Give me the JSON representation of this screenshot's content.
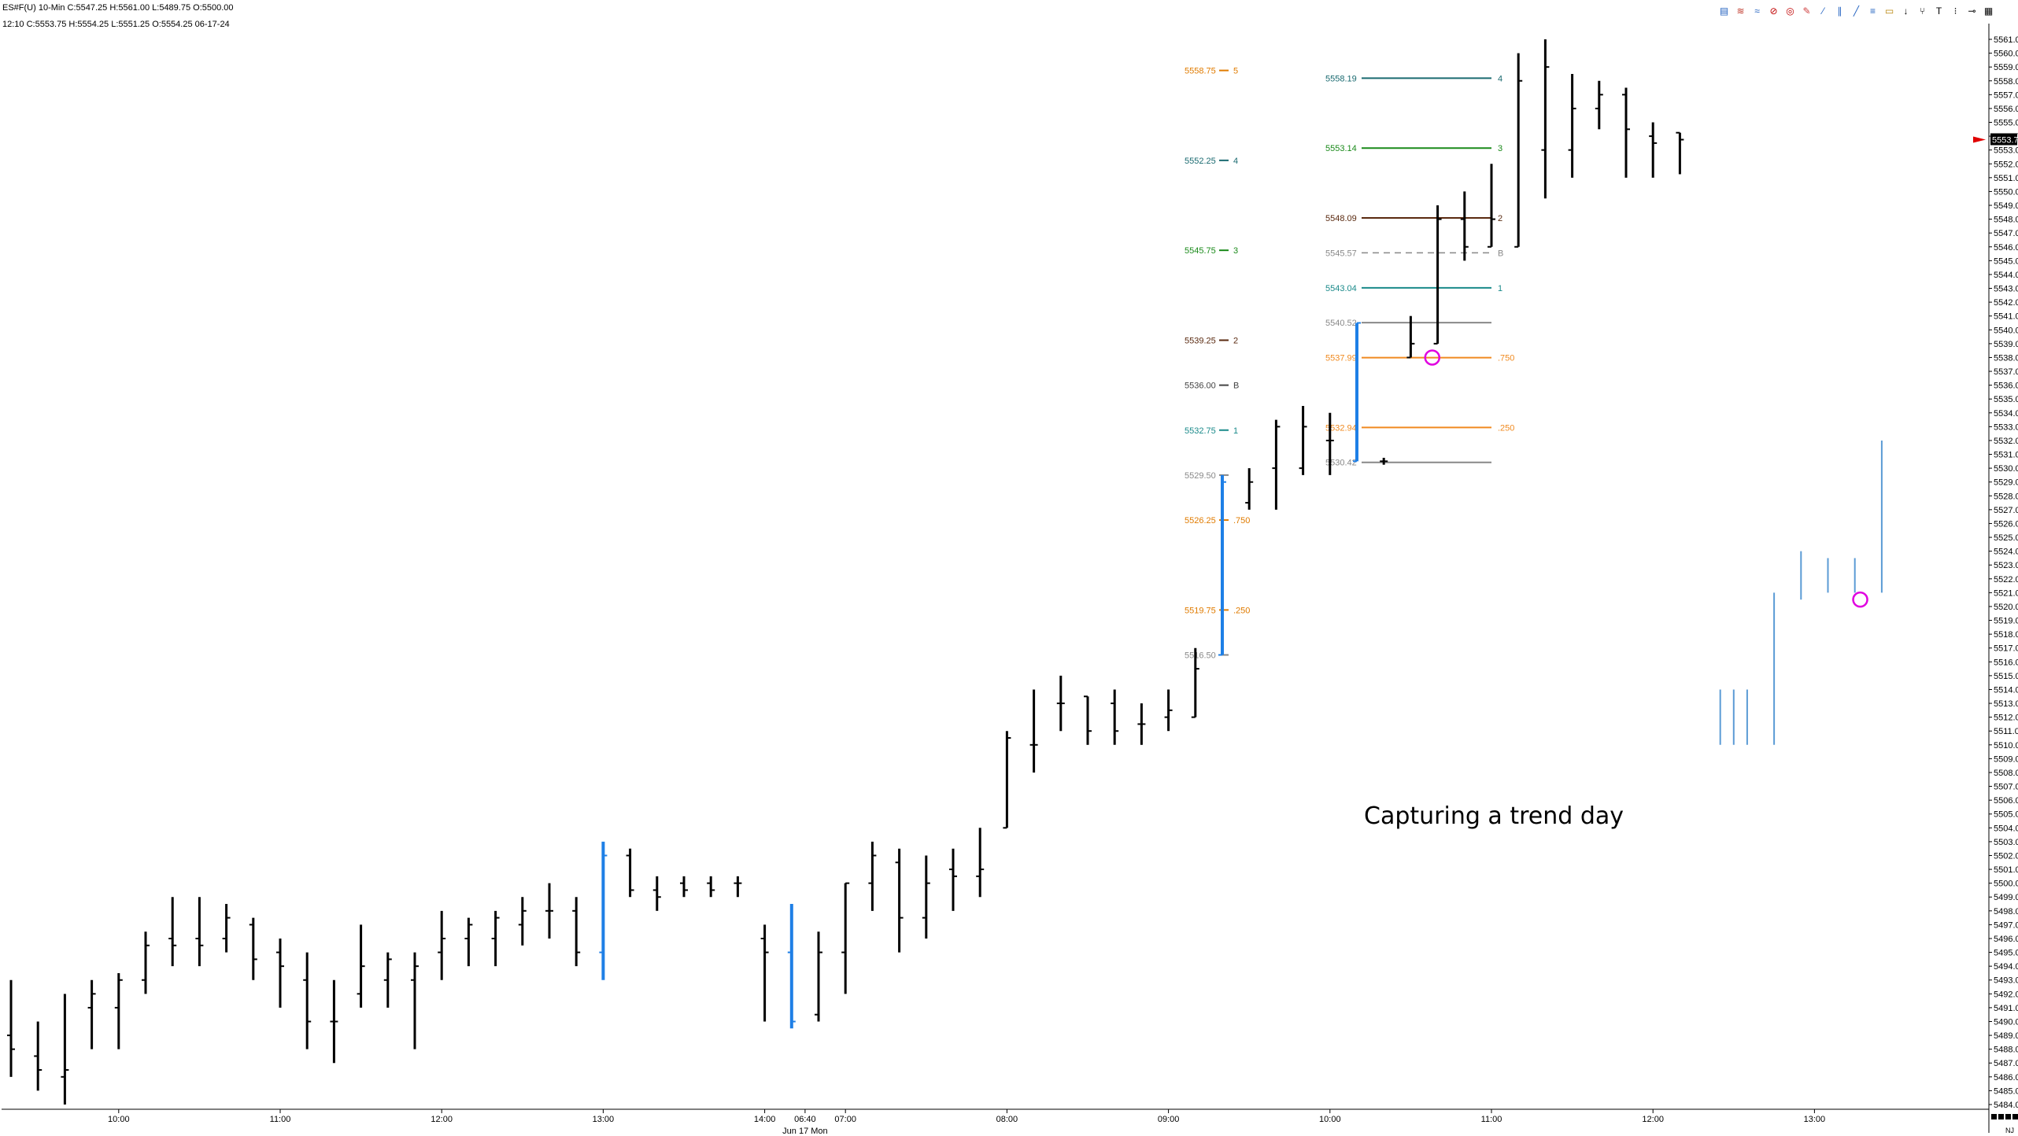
{
  "header": {
    "line1": "ES#F(U)  10-Min  C:5547.25  H:5561.00  L:5489.75  O:5500.00",
    "line2": "12:10  C:5553.75  H:5554.25  L:5551.25  O:5554.25  06-17-24"
  },
  "toolbar": {
    "icons": [
      "chart-style-icon",
      "wave-icon",
      "zigzag-icon",
      "no-entry-icon",
      "target-icon",
      "pencil-icon",
      "diagonal-line-icon",
      "parallel-lines-icon",
      "ray-icon",
      "fibonacci-icon",
      "highlighter-icon",
      "arrow-down-icon",
      "fork-icon",
      "text-icon",
      "dots-icon",
      "ruler-icon",
      "grid-icon"
    ],
    "glyphs": [
      "▤",
      "≋",
      "≈",
      "⊘",
      "◎",
      "✎",
      "⁄",
      "∥",
      "╱",
      "≡",
      "▭",
      "↓",
      "⑂",
      "T",
      "⁝",
      "⊸",
      "▦"
    ],
    "colors": [
      "#1f5fbf",
      "#c0392b",
      "#1f5fbf",
      "#c00000",
      "#c00000",
      "#d04040",
      "#2060c0",
      "#2060c0",
      "#2060c0",
      "#2060c0",
      "#b8860b",
      "#000000",
      "#000000",
      "#000000",
      "#000000",
      "#000000",
      "#000000"
    ]
  },
  "annotation": "Capturing a trend day",
  "chart_data": {
    "type": "ohlc",
    "instrument": "ES#F(U)",
    "timeframe": "10-Min",
    "price_axis": {
      "min": 5484.0,
      "max": 5561.0,
      "step": 1.0,
      "decimals": 2,
      "last_price": "5553.75",
      "last_price_value": 5553.75
    },
    "time_labels": [
      "10:00",
      "11:00",
      "12:00",
      "13:00",
      "14:00",
      "06:40",
      "07:00",
      "08:00",
      "09:00",
      "10:00",
      "11:00",
      "12:00",
      "13:00"
    ],
    "time_label_bars": [
      4,
      10,
      16,
      22,
      28,
      29.5,
      31,
      37,
      43,
      49,
      55,
      61,
      67
    ],
    "date_label": "Jun 17 Mon",
    "corner_label": "NJ",
    "bars": [
      {
        "o": 5489,
        "h": 5493,
        "l": 5486,
        "c": 5488,
        "color": "black"
      },
      {
        "o": 5487.5,
        "h": 5490,
        "l": 5485,
        "c": 5486.5,
        "color": "black"
      },
      {
        "o": 5486,
        "h": 5492,
        "l": 5484,
        "c": 5486.5,
        "color": "black"
      },
      {
        "o": 5491,
        "h": 5493,
        "l": 5488,
        "c": 5492,
        "color": "black"
      },
      {
        "o": 5491,
        "h": 5493.5,
        "l": 5488,
        "c": 5493,
        "color": "black"
      },
      {
        "o": 5493,
        "h": 5496.5,
        "l": 5492,
        "c": 5495.5,
        "color": "black"
      },
      {
        "o": 5496,
        "h": 5499,
        "l": 5494,
        "c": 5495.5,
        "color": "black"
      },
      {
        "o": 5496,
        "h": 5499,
        "l": 5494,
        "c": 5495.5,
        "color": "black"
      },
      {
        "o": 5496,
        "h": 5498.5,
        "l": 5495,
        "c": 5497.5,
        "color": "black"
      },
      {
        "o": 5497,
        "h": 5497.5,
        "l": 5493,
        "c": 5494.5,
        "color": "black"
      },
      {
        "o": 5495,
        "h": 5496,
        "l": 5491,
        "c": 5494,
        "color": "black"
      },
      {
        "o": 5493,
        "h": 5495,
        "l": 5488,
        "c": 5490,
        "color": "black"
      },
      {
        "o": 5490,
        "h": 5493,
        "l": 5487,
        "c": 5490,
        "color": "black"
      },
      {
        "o": 5492,
        "h": 5497,
        "l": 5491,
        "c": 5494,
        "color": "black"
      },
      {
        "o": 5493,
        "h": 5495,
        "l": 5491,
        "c": 5494.5,
        "color": "black"
      },
      {
        "o": 5493,
        "h": 5495,
        "l": 5488,
        "c": 5494,
        "color": "black"
      },
      {
        "o": 5495,
        "h": 5498,
        "l": 5493,
        "c": 5496,
        "color": "black"
      },
      {
        "o": 5496,
        "h": 5497.5,
        "l": 5494,
        "c": 5497,
        "color": "black"
      },
      {
        "o": 5496,
        "h": 5498,
        "l": 5494,
        "c": 5497.5,
        "color": "black"
      },
      {
        "o": 5497,
        "h": 5499,
        "l": 5495.5,
        "c": 5498,
        "color": "black"
      },
      {
        "o": 5498,
        "h": 5500,
        "l": 5496,
        "c": 5498,
        "color": "black"
      },
      {
        "o": 5498,
        "h": 5499,
        "l": 5494,
        "c": 5495,
        "color": "black"
      },
      {
        "o": 5495,
        "h": 5503,
        "l": 5493,
        "c": 5502,
        "color": "blue"
      },
      {
        "o": 5502,
        "h": 5502.5,
        "l": 5499,
        "c": 5499.5,
        "color": "black"
      },
      {
        "o": 5499.5,
        "h": 5500.5,
        "l": 5498,
        "c": 5499,
        "color": "black"
      },
      {
        "o": 5500,
        "h": 5500.5,
        "l": 5499,
        "c": 5499.5,
        "color": "black"
      },
      {
        "o": 5500,
        "h": 5500.5,
        "l": 5499,
        "c": 5499.5,
        "color": "black"
      },
      {
        "o": 5500,
        "h": 5500.5,
        "l": 5499,
        "c": 5500,
        "color": "black"
      },
      {
        "o": 5496,
        "h": 5497,
        "l": 5490,
        "c": 5495,
        "color": "black"
      },
      {
        "o": 5495,
        "h": 5498.5,
        "l": 5489.5,
        "c": 5490,
        "color": "blue"
      },
      {
        "o": 5490.5,
        "h": 5496.5,
        "l": 5490,
        "c": 5495,
        "color": "black"
      },
      {
        "o": 5495,
        "h": 5500,
        "l": 5492,
        "c": 5500,
        "color": "black"
      },
      {
        "o": 5500,
        "h": 5503,
        "l": 5498,
        "c": 5502,
        "color": "black"
      },
      {
        "o": 5501.5,
        "h": 5502.5,
        "l": 5495,
        "c": 5497.5,
        "color": "black"
      },
      {
        "o": 5497.5,
        "h": 5502,
        "l": 5496,
        "c": 5500,
        "color": "black"
      },
      {
        "o": 5501,
        "h": 5502.5,
        "l": 5498,
        "c": 5500.5,
        "color": "black"
      },
      {
        "o": 5500.5,
        "h": 5504,
        "l": 5499,
        "c": 5501,
        "color": "black"
      },
      {
        "o": 5504,
        "h": 5511,
        "l": 5504,
        "c": 5510.5,
        "color": "black"
      },
      {
        "o": 5510,
        "h": 5514,
        "l": 5508,
        "c": 5510,
        "color": "black"
      },
      {
        "o": 5513,
        "h": 5515,
        "l": 5511,
        "c": 5513,
        "color": "black"
      },
      {
        "o": 5513.5,
        "h": 5513.5,
        "l": 5510,
        "c": 5511,
        "color": "black"
      },
      {
        "o": 5513,
        "h": 5514,
        "l": 5510,
        "c": 5511,
        "color": "black"
      },
      {
        "o": 5511.5,
        "h": 5513,
        "l": 5510,
        "c": 5511.5,
        "color": "black"
      },
      {
        "o": 5512,
        "h": 5514,
        "l": 5511,
        "c": 5512.5,
        "color": "black"
      },
      {
        "o": 5512,
        "h": 5517,
        "l": 5512,
        "c": 5515.5,
        "color": "black"
      },
      {
        "o": 5516.5,
        "h": 5529.5,
        "l": 5516.5,
        "c": 5529,
        "color": "blue"
      },
      {
        "o": 5527.5,
        "h": 5530,
        "l": 5527,
        "c": 5529,
        "color": "black"
      },
      {
        "o": 5530,
        "h": 5533.5,
        "l": 5527,
        "c": 5533,
        "color": "black"
      },
      {
        "o": 5530,
        "h": 5534.5,
        "l": 5529.5,
        "c": 5533,
        "color": "black"
      },
      {
        "o": 5532,
        "h": 5534,
        "l": 5529.5,
        "c": 5532,
        "color": "black"
      },
      {
        "o": 5530.5,
        "h": 5540.5,
        "l": 5530.5,
        "c": 5540.5,
        "color": "blue"
      },
      {
        "o": 5530.5,
        "h": 5530.75,
        "l": 5530.25,
        "c": 5530.5,
        "color": "black"
      },
      {
        "o": 5538,
        "h": 5541,
        "l": 5538,
        "c": 5539,
        "color": "black"
      },
      {
        "o": 5539,
        "h": 5549,
        "l": 5539,
        "c": 5548,
        "color": "black"
      },
      {
        "o": 5548,
        "h": 5550,
        "l": 5545,
        "c": 5546,
        "color": "black"
      },
      {
        "o": 5546,
        "h": 5552,
        "l": 5546,
        "c": 5548,
        "color": "black"
      },
      {
        "o": 5546,
        "h": 5560,
        "l": 5546,
        "c": 5558,
        "color": "black"
      },
      {
        "o": 5553,
        "h": 5561,
        "l": 5549.5,
        "c": 5559,
        "color": "black"
      },
      {
        "o": 5553,
        "h": 5558.5,
        "l": 5551,
        "c": 5556,
        "color": "black"
      },
      {
        "o": 5556,
        "h": 5558,
        "l": 5554.5,
        "c": 5557,
        "color": "black"
      },
      {
        "o": 5557,
        "h": 5557.5,
        "l": 5551,
        "c": 5554.5,
        "color": "black"
      },
      {
        "o": 5554,
        "h": 5555,
        "l": 5551,
        "c": 5553.5,
        "color": "black"
      },
      {
        "o": 5554.25,
        "h": 5554.25,
        "l": 5551.25,
        "c": 5553.75,
        "color": "black"
      }
    ],
    "overlay_bars": [
      {
        "pos": 63.5,
        "h": 5514,
        "l": 5510
      },
      {
        "pos": 64.0,
        "h": 5514,
        "l": 5510
      },
      {
        "pos": 64.5,
        "h": 5514,
        "l": 5510
      },
      {
        "pos": 65.5,
        "h": 5521,
        "l": 5510
      },
      {
        "pos": 66.5,
        "h": 5524,
        "l": 5520.5
      },
      {
        "pos": 67.5,
        "h": 5523.5,
        "l": 5521
      },
      {
        "pos": 68.5,
        "h": 5523.5,
        "l": 5521
      },
      {
        "pos": 69.5,
        "h": 5532,
        "l": 5521
      }
    ],
    "projection_sets": [
      {
        "label_bar": 45,
        "labels_left": true,
        "levels": [
          {
            "label": "5558.75",
            "value": 5558.75,
            "tag": "5",
            "color": "#e07b00"
          },
          {
            "label": "5552.25",
            "value": 5552.25,
            "tag": "4",
            "color": "#1a6a70"
          },
          {
            "label": "5545.75",
            "value": 5545.75,
            "tag": "3",
            "color": "#1a8a1a"
          },
          {
            "label": "5539.25",
            "value": 5539.25,
            "tag": "2",
            "color": "#5a2a10"
          },
          {
            "label": "5536.00",
            "value": 5536.0,
            "tag": "B",
            "color": "#444444"
          },
          {
            "label": "5532.75",
            "value": 5532.75,
            "tag": "1",
            "color": "#1a8a8a"
          },
          {
            "label": "5529.50",
            "value": 5529.5,
            "tag": "",
            "color": "#888888"
          },
          {
            "label": "5526.25",
            "value": 5526.25,
            "tag": ".750",
            "color": "#e07b00"
          },
          {
            "label": "5519.75",
            "value": 5519.75,
            "tag": ".250",
            "color": "#e07b00"
          },
          {
            "label": "5516.50",
            "value": 5516.5,
            "tag": "",
            "color": "#888888"
          }
        ]
      },
      {
        "line_start_bar": 50,
        "line_end_bar": 55,
        "levels": [
          {
            "label": "5558.19",
            "value": 5558.19,
            "tag": "4",
            "color": "#1a6a70"
          },
          {
            "label": "5553.14",
            "value": 5553.14,
            "tag": "3",
            "color": "#1a8a1a"
          },
          {
            "label": "5548.09",
            "value": 5548.09,
            "tag": "2",
            "color": "#5a2a10"
          },
          {
            "label": "5545.57",
            "value": 5545.57,
            "tag": "B",
            "color": "#888888",
            "dashed": true
          },
          {
            "label": "5543.04",
            "value": 5543.04,
            "tag": "1",
            "color": "#1a8a8a"
          },
          {
            "label": "5540.52",
            "value": 5540.52,
            "tag": "",
            "color": "#888888"
          },
          {
            "label": "5537.99",
            "value": 5537.99,
            "tag": ".750",
            "color": "#f08a20"
          },
          {
            "label": "5532.94",
            "value": 5532.94,
            "tag": ".250",
            "color": "#f08a20"
          },
          {
            "label": "5530.42",
            "value": 5530.42,
            "tag": "",
            "color": "#888888"
          }
        ]
      }
    ],
    "circles": [
      {
        "bar": 52.8,
        "value": 5538.0,
        "color": "#e000e0"
      },
      {
        "bar": 68.7,
        "value": 5520.5,
        "color": "#e000e0"
      }
    ],
    "grid": false,
    "legend": "none"
  }
}
